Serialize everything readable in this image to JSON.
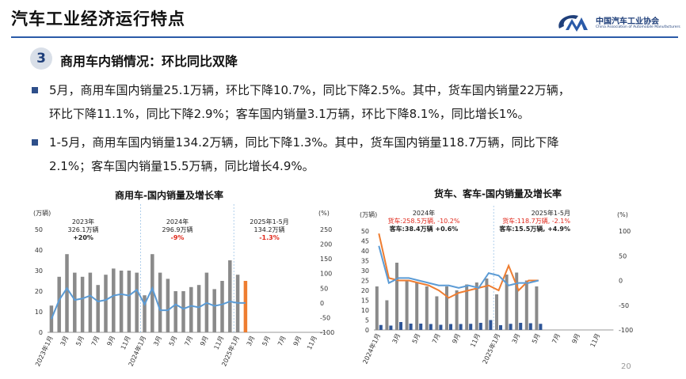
{
  "header": {
    "title": "汽车工业经济运行特点"
  },
  "logo": {
    "cn": "中国汽车工业协会",
    "en": "China Association of Automobile Manufacturers"
  },
  "section": {
    "number": "3",
    "title": "商用车内销情况：环比同比双降"
  },
  "bullets": [
    {
      "lines": [
        "5月，商用车国内销量25.1万辆，环比下降10.7%，同比下降2.5%。其中，货车国内销量22万辆，",
        "环比下降11.1%，同比下降2.9%；客车国内销量3.1万辆，环比下降8.1%，同比增长1%。"
      ]
    },
    {
      "lines": [
        "1-5月，商用车国内销量134.2万辆，同比下降1.3%。其中，货车国内销量118.7万辆，同比下降",
        "2.1%；客车国内销量15.5万辆，同比增长4.9%。"
      ]
    }
  ],
  "page_number": "20",
  "chart_data": [
    {
      "type": "bar",
      "title": "商用车-国内销量及增长率",
      "ylabel_left": "(万辆)",
      "ylabel_right": "(%)",
      "ylim_left": [
        0,
        50
      ],
      "ylim_right": [
        -100,
        250
      ],
      "left_ticks": [
        "0",
        "10",
        "20",
        "30",
        "40",
        "50"
      ],
      "right_ticks": [
        "-100",
        "-50",
        "0",
        "50",
        "100",
        "150",
        "200",
        "250"
      ],
      "x_tick_labels": [
        "2023年1月",
        "3月",
        "5月",
        "7月",
        "9月",
        "11月",
        "2024年1月",
        "3月",
        "5月",
        "7月",
        "9月",
        "11月",
        "2025年1月",
        "3月",
        "5月",
        "7月",
        "9月",
        "11月"
      ],
      "annotations": [
        {
          "lines": [
            "2023年",
            "326.1万辆",
            "+20%"
          ],
          "colors": [
            "#222222",
            "#222222",
            "#222222"
          ]
        },
        {
          "lines": [
            "2024年",
            "296.9万辆",
            "-9%"
          ],
          "colors": [
            "#222222",
            "#222222",
            "#e0291c"
          ]
        },
        {
          "lines": [
            "2025年1-5月",
            "134.2万辆",
            "-1.3%"
          ],
          "colors": [
            "#222222",
            "#222222",
            "#e0291c"
          ]
        }
      ],
      "series": [
        {
          "name": "国内销量",
          "kind": "bar",
          "color": "#8a8a8a",
          "highlight_last_color": "#ee7d31",
          "values": [
            13,
            27,
            38,
            29,
            27,
            29,
            23,
            28,
            31,
            30,
            30,
            29,
            18,
            38,
            29,
            26,
            20,
            20,
            22,
            23,
            29,
            21,
            25,
            35,
            28,
            25
          ]
        },
        {
          "name": "增长率",
          "kind": "line",
          "axis": "right",
          "color": "#5b9bd5",
          "values": [
            -55,
            10,
            50,
            10,
            15,
            25,
            5,
            10,
            25,
            30,
            25,
            45,
            -5,
            50,
            -25,
            -25,
            -5,
            -20,
            -10,
            -15,
            0,
            -10,
            -5,
            5,
            0,
            0
          ]
        }
      ]
    },
    {
      "type": "bar",
      "title": "货车、客车-国内销量及增长率",
      "ylabel_left": "(万辆)",
      "ylabel_right": "(%)",
      "ylim_left": [
        0,
        50
      ],
      "ylim_right": [
        -100,
        100
      ],
      "left_ticks": [
        "0",
        "5",
        "10",
        "15",
        "20",
        "25",
        "30",
        "35",
        "40",
        "45",
        "50"
      ],
      "right_ticks": [
        "-100",
        "-50",
        "0",
        "50",
        "100"
      ],
      "x_tick_labels": [
        "2024年1月",
        "3月",
        "5月",
        "7月",
        "9月",
        "11月",
        "2025年1月",
        "3月",
        "5月",
        "7月",
        "9月",
        "11月"
      ],
      "annotations": [
        {
          "lines": [
            "2024年",
            "货车:258.5万辆, -10.2%",
            "客车:38.4万辆 +0.6%"
          ],
          "colors": [
            "#222222",
            "#e0291c",
            "#222222"
          ]
        },
        {
          "lines": [
            "2025年1-5月",
            "货车:118.7万辆, -2.1%",
            "客车:15.5万辆, +4.9%"
          ],
          "colors": [
            "#222222",
            "#e0291c",
            "#222222"
          ]
        }
      ],
      "series": [
        {
          "name": "货车国内销量",
          "kind": "bar",
          "color": "#8a8a8a",
          "values": [
            22,
            15,
            34,
            25,
            24,
            22,
            17,
            22,
            20,
            23,
            24,
            26,
            18,
            28,
            29,
            25,
            22
          ]
        },
        {
          "name": "客车国内销量",
          "kind": "bar",
          "color": "#2e5597",
          "values": [
            2.5,
            2.2,
            4,
            3.2,
            3.2,
            3,
            2.6,
            3,
            3,
            3.1,
            3.6,
            5,
            2.4,
            3.1,
            3.6,
            3.4,
            3.1
          ]
        },
        {
          "name": "货车增长率",
          "kind": "line",
          "axis": "right",
          "color": "#ee7d31",
          "values": [
            95,
            5,
            0,
            0,
            -5,
            -10,
            -20,
            -35,
            -25,
            -20,
            -15,
            -10,
            -20,
            30,
            -20,
            0,
            0
          ]
        },
        {
          "name": "客车增长率",
          "kind": "line",
          "axis": "right",
          "color": "#5b9bd5",
          "values": [
            70,
            -5,
            5,
            5,
            0,
            -5,
            -10,
            -10,
            -15,
            -10,
            -15,
            15,
            10,
            -10,
            -5,
            -5,
            0
          ]
        }
      ]
    }
  ]
}
